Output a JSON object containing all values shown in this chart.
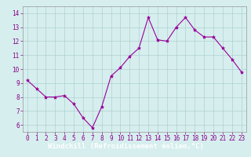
{
  "x": [
    0,
    1,
    2,
    3,
    4,
    5,
    6,
    7,
    8,
    9,
    10,
    11,
    12,
    13,
    14,
    15,
    16,
    17,
    18,
    19,
    20,
    21,
    22,
    23
  ],
  "y": [
    9.2,
    8.6,
    8.0,
    8.0,
    8.1,
    7.5,
    6.5,
    5.8,
    7.3,
    9.5,
    10.1,
    10.9,
    11.5,
    13.7,
    12.1,
    12.0,
    13.0,
    13.7,
    12.8,
    12.3,
    12.3,
    11.5,
    10.7,
    9.8
  ],
  "line_color": "#990099",
  "marker": "*",
  "marker_size": 3,
  "bg_color": "#d6eeee",
  "grid_color": "#b0d0d0",
  "xlabel": "Windchill (Refroidissement éolien,°C)",
  "xlabel_bg": "#7744bb",
  "xlabel_color": "#ffffff",
  "ylim": [
    5.5,
    14.5
  ],
  "xlim": [
    -0.5,
    23.5
  ],
  "yticks": [
    6,
    7,
    8,
    9,
    10,
    11,
    12,
    13,
    14
  ],
  "xticks": [
    0,
    1,
    2,
    3,
    4,
    5,
    6,
    7,
    8,
    9,
    10,
    11,
    12,
    13,
    14,
    15,
    16,
    17,
    18,
    19,
    20,
    21,
    22,
    23
  ],
  "tick_fontsize": 5.5,
  "xlabel_fontsize": 6.5,
  "tick_color": "#880088"
}
